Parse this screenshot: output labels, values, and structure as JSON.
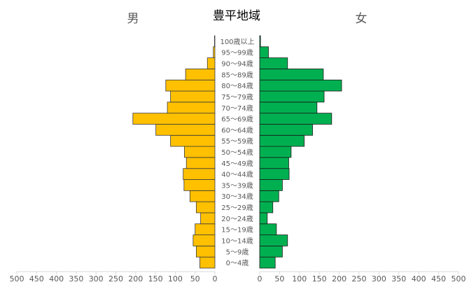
{
  "chart_data": {
    "type": "bar",
    "title": "豊平地域",
    "left_label": "男",
    "right_label": "女",
    "categories": [
      "0～4歳",
      "5～9歳",
      "10～14歳",
      "15～19歳",
      "20～24歳",
      "25～29歳",
      "30～34歳",
      "35～39歳",
      "40～44歳",
      "45～49歳",
      "50～54歳",
      "55～59歳",
      "60～64歳",
      "65～69歳",
      "70～74歳",
      "75～79歳",
      "80～84歳",
      "85～89歳",
      "90～94歳",
      "95～99歳",
      "100歳以上"
    ],
    "series": [
      {
        "name": "男",
        "values": [
          38,
          47,
          55,
          50,
          36,
          47,
          63,
          78,
          80,
          72,
          77,
          112,
          149,
          207,
          120,
          112,
          124,
          74,
          19,
          4,
          1
        ]
      },
      {
        "name": "女",
        "values": [
          39,
          57,
          70,
          42,
          19,
          33,
          48,
          57,
          74,
          73,
          79,
          112,
          133,
          181,
          144,
          162,
          206,
          160,
          70,
          22,
          2
        ]
      }
    ],
    "male_axis_ticks": [
      "500",
      "450",
      "400",
      "350",
      "300",
      "250",
      "200",
      "150",
      "100",
      "50",
      "0"
    ],
    "female_axis_ticks": [
      "0",
      "50",
      "100",
      "150",
      "200",
      "250",
      "300",
      "350",
      "400",
      "450",
      "500"
    ],
    "xlim": [
      0,
      500
    ],
    "colors": {
      "male": "#FFC000",
      "female": "#00B050",
      "axis": "#d9d9d9",
      "text": "#595959"
    }
  }
}
